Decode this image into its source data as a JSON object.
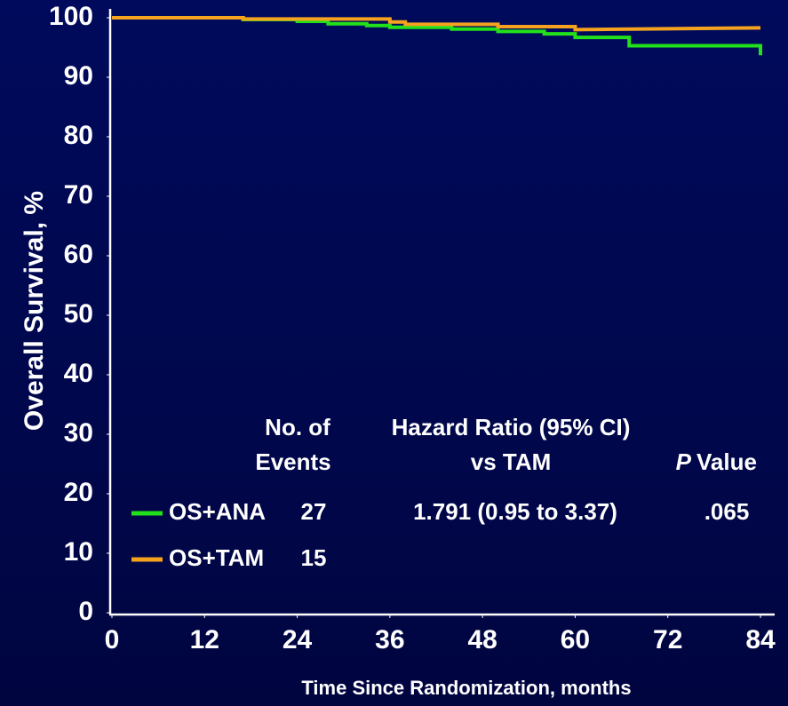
{
  "chart_data": {
    "type": "line",
    "y_label": "Overall Survival, %",
    "x_label": "Time Since Randomization, months",
    "xlim": [
      0,
      84
    ],
    "xticks": [
      0,
      12,
      24,
      36,
      48,
      60,
      72,
      84
    ],
    "ylim": [
      0,
      100
    ],
    "yticks": [
      0,
      10,
      20,
      30,
      40,
      50,
      60,
      70,
      80,
      90,
      100
    ],
    "series": [
      {
        "name": "OS+ANA",
        "color": "#22e01a",
        "x": [
          0,
          17,
          17,
          24,
          24,
          28,
          28,
          33,
          33,
          36,
          36,
          44,
          44,
          50,
          50,
          56,
          56,
          60,
          60,
          67,
          67,
          84,
          84
        ],
        "values": [
          100,
          100,
          99.7,
          99.7,
          99.4,
          99.4,
          99.0,
          99.0,
          98.7,
          98.7,
          98.4,
          98.4,
          98.1,
          98.1,
          97.7,
          97.7,
          97.3,
          97.3,
          96.7,
          96.7,
          95.3,
          95.3,
          93.7
        ]
      },
      {
        "name": "OS+TAM",
        "color": "#f5a21e",
        "x": [
          0,
          17,
          17,
          36,
          36,
          38,
          38,
          50,
          50,
          60,
          60,
          84
        ],
        "values": [
          100,
          100,
          99.8,
          99.8,
          99.3,
          99.3,
          98.9,
          98.9,
          98.5,
          98.5,
          98.0,
          98.3
        ]
      }
    ],
    "legend_table": {
      "events_header": [
        "No. of",
        "Events"
      ],
      "hazard_header": [
        "Hazard Ratio (95% CI)",
        "vs TAM"
      ],
      "p_header": [
        "P",
        "Value"
      ],
      "events": [
        27,
        15
      ],
      "hazard_ratio": "1.791 (0.95 to 3.37)",
      "p_value": ".065"
    }
  }
}
